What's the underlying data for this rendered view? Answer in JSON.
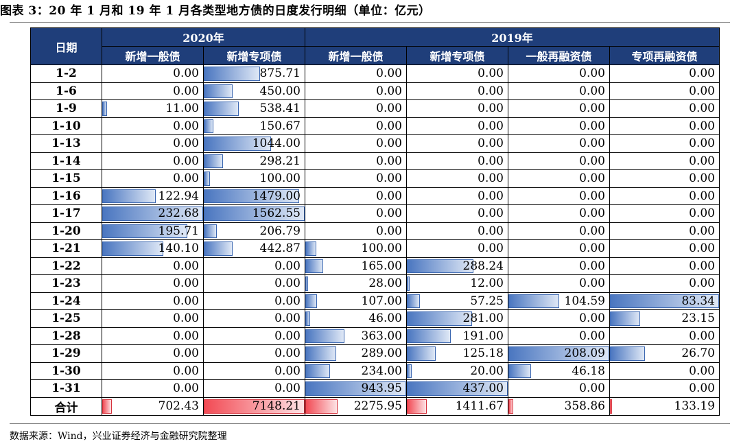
{
  "title": "图表 3：20 年 1 月和 19 年 1 月各类型地方债的日度发行明细（单位：亿元）",
  "source": "数据来源：Wind，兴业证券经济与金融研究院整理",
  "colors": {
    "header_bg": "#1f3e7a",
    "bar_blue": "#4a76c0",
    "bar_red": "#f24a54"
  },
  "table": {
    "date_header": "日期",
    "groups": [
      "2020年",
      "2019年"
    ],
    "columns": [
      "新增一般债",
      "新增专项债",
      "新增一般债",
      "新增专项债",
      "一般再融资债",
      "专项再融资债"
    ],
    "rows": [
      {
        "date": "1-2",
        "values": [
          "0.00",
          "875.71",
          "0.00",
          "0.00",
          "0.00",
          "0.00"
        ]
      },
      {
        "date": "1-6",
        "values": [
          "0.00",
          "450.00",
          "0.00",
          "0.00",
          "0.00",
          "0.00"
        ]
      },
      {
        "date": "1-9",
        "values": [
          "11.00",
          "538.41",
          "0.00",
          "0.00",
          "0.00",
          "0.00"
        ]
      },
      {
        "date": "1-10",
        "values": [
          "0.00",
          "150.67",
          "0.00",
          "0.00",
          "0.00",
          "0.00"
        ]
      },
      {
        "date": "1-13",
        "values": [
          "0.00",
          "1044.00",
          "0.00",
          "0.00",
          "0.00",
          "0.00"
        ]
      },
      {
        "date": "1-14",
        "values": [
          "0.00",
          "298.21",
          "0.00",
          "0.00",
          "0.00",
          "0.00"
        ]
      },
      {
        "date": "1-15",
        "values": [
          "0.00",
          "100.00",
          "0.00",
          "0.00",
          "0.00",
          "0.00"
        ]
      },
      {
        "date": "1-16",
        "values": [
          "122.94",
          "1479.00",
          "0.00",
          "0.00",
          "0.00",
          "0.00"
        ]
      },
      {
        "date": "1-17",
        "values": [
          "232.68",
          "1562.55",
          "0.00",
          "0.00",
          "0.00",
          "0.00"
        ]
      },
      {
        "date": "1-20",
        "values": [
          "195.71",
          "206.79",
          "0.00",
          "0.00",
          "0.00",
          "0.00"
        ]
      },
      {
        "date": "1-21",
        "values": [
          "140.10",
          "442.87",
          "100.00",
          "0.00",
          "0.00",
          "0.00"
        ]
      },
      {
        "date": "1-22",
        "values": [
          "0.00",
          "0.00",
          "165.00",
          "288.24",
          "0.00",
          "0.00"
        ]
      },
      {
        "date": "1-23",
        "values": [
          "0.00",
          "0.00",
          "28.00",
          "12.00",
          "0.00",
          "0.00"
        ]
      },
      {
        "date": "1-24",
        "values": [
          "0.00",
          "0.00",
          "107.00",
          "57.25",
          "104.59",
          "83.34"
        ]
      },
      {
        "date": "1-25",
        "values": [
          "0.00",
          "0.00",
          "46.00",
          "281.00",
          "0.00",
          "23.15"
        ]
      },
      {
        "date": "1-28",
        "values": [
          "0.00",
          "0.00",
          "363.00",
          "191.00",
          "0.00",
          "0.00"
        ]
      },
      {
        "date": "1-29",
        "values": [
          "0.00",
          "0.00",
          "289.00",
          "125.18",
          "208.09",
          "26.70"
        ]
      },
      {
        "date": "1-30",
        "values": [
          "0.00",
          "0.00",
          "234.00",
          "20.00",
          "46.18",
          "0.00"
        ]
      },
      {
        "date": "1-31",
        "values": [
          "0.00",
          "0.00",
          "943.95",
          "437.00",
          "0.00",
          "0.00"
        ]
      }
    ],
    "total": {
      "date": "合计",
      "values": [
        "702.43",
        "7148.21",
        "2275.95",
        "1411.67",
        "358.86",
        "133.19"
      ]
    }
  }
}
